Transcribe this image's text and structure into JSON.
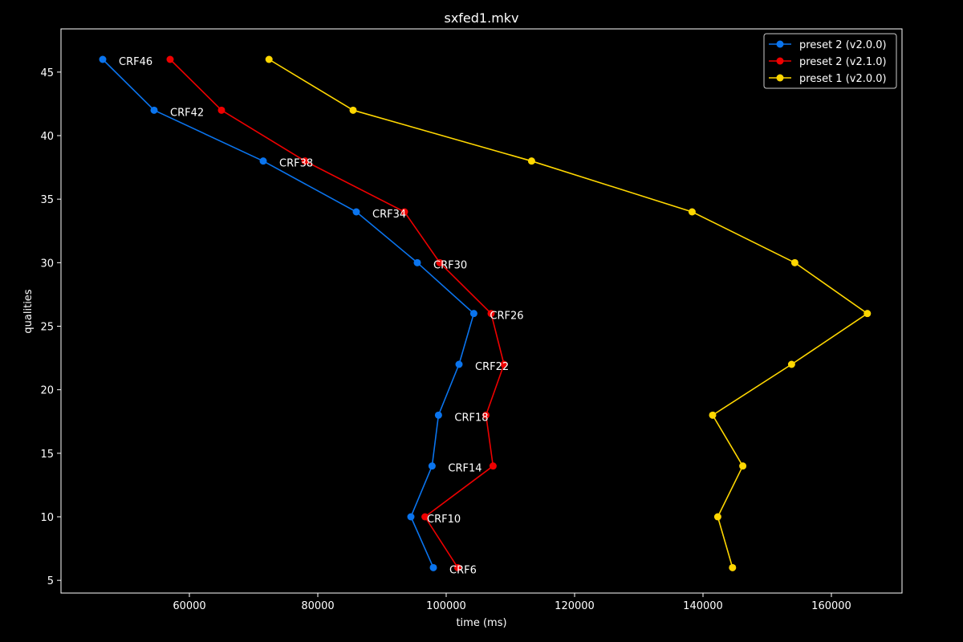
{
  "chart_data": {
    "type": "line",
    "title": "sxfed1.mkv",
    "xlabel": "time (ms)",
    "ylabel": "qualities",
    "xlim": [
      40000,
      171000
    ],
    "ylim": [
      4,
      48.4
    ],
    "xticks": [
      60000,
      80000,
      100000,
      120000,
      140000,
      160000
    ],
    "yticks": [
      5,
      10,
      15,
      20,
      25,
      30,
      35,
      40,
      45
    ],
    "grid": false,
    "legend_position": "top-right",
    "series": [
      {
        "name": "preset 2 (v2.0.0)",
        "color": "#0a74ee",
        "x": [
          46500,
          54500,
          71500,
          86000,
          95500,
          104300,
          102000,
          98800,
          97800,
          94500,
          98000
        ],
        "y": [
          46,
          42,
          38,
          34,
          30,
          26,
          22,
          18,
          14,
          10,
          6
        ]
      },
      {
        "name": "preset 2 (v2.1.0)",
        "color": "#ee0000",
        "x": [
          57000,
          65000,
          78000,
          93500,
          99000,
          107000,
          109000,
          106200,
          107300,
          96700,
          101800
        ],
        "y": [
          46,
          42,
          38,
          34,
          30,
          26,
          22,
          18,
          14,
          10,
          6
        ]
      },
      {
        "name": "preset 1 (v2.0.0)",
        "color": "#ffd700",
        "x": [
          72400,
          85500,
          113300,
          138300,
          154300,
          165600,
          153800,
          141500,
          146200,
          142300,
          144600
        ],
        "y": [
          46,
          42,
          38,
          34,
          30,
          26,
          22,
          18,
          14,
          10,
          6
        ]
      }
    ],
    "annotations": [
      {
        "text": "CRF46",
        "x": 46500,
        "y": 46
      },
      {
        "text": "CRF42",
        "x": 54500,
        "y": 42
      },
      {
        "text": "CRF38",
        "x": 71500,
        "y": 38
      },
      {
        "text": "CRF34",
        "x": 86000,
        "y": 34
      },
      {
        "text": "CRF30",
        "x": 95500,
        "y": 30
      },
      {
        "text": "CRF26",
        "x": 104300,
        "y": 26
      },
      {
        "text": "CRF22",
        "x": 102000,
        "y": 22
      },
      {
        "text": "CRF18",
        "x": 98800,
        "y": 18
      },
      {
        "text": "CRF14",
        "x": 97800,
        "y": 14
      },
      {
        "text": "CRF10",
        "x": 94500,
        "y": 10
      },
      {
        "text": "CRF6",
        "x": 98000,
        "y": 6
      }
    ]
  }
}
